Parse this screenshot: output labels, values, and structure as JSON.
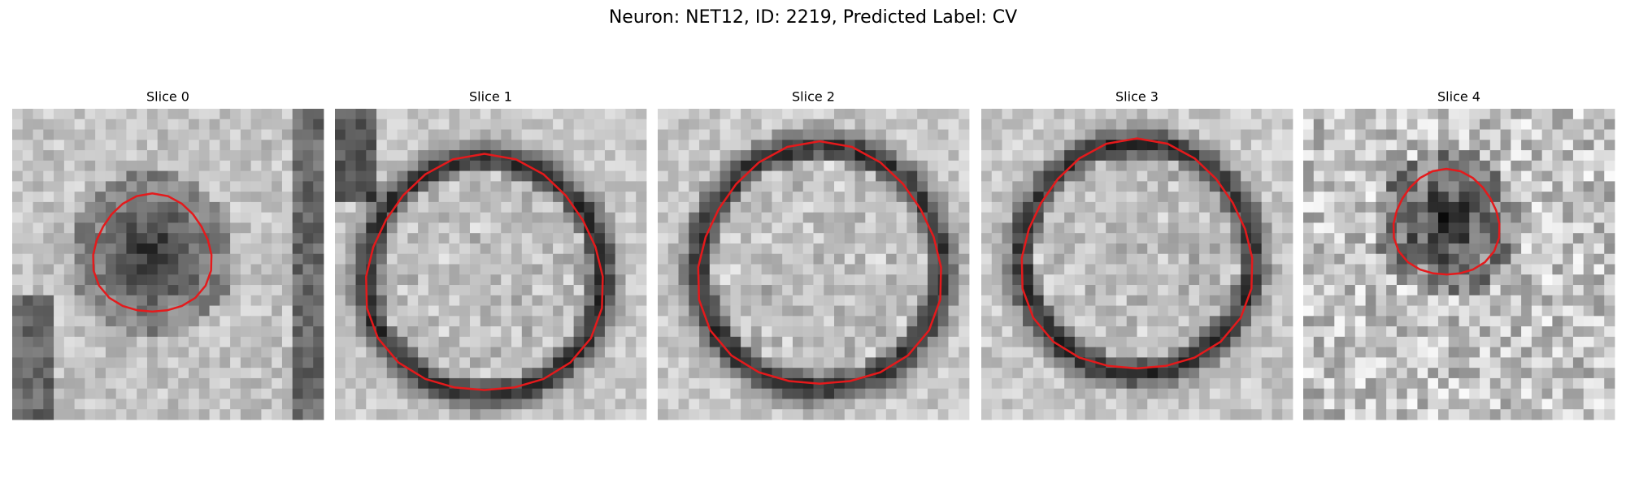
{
  "title": "Neuron: NET12, ID: 2219, Predicted Label: CV",
  "panels": [
    {
      "title": "Slice 0"
    },
    {
      "title": "Slice 1"
    },
    {
      "title": "Slice 2"
    },
    {
      "title": "Slice 3"
    },
    {
      "title": "Slice 4"
    }
  ]
}
